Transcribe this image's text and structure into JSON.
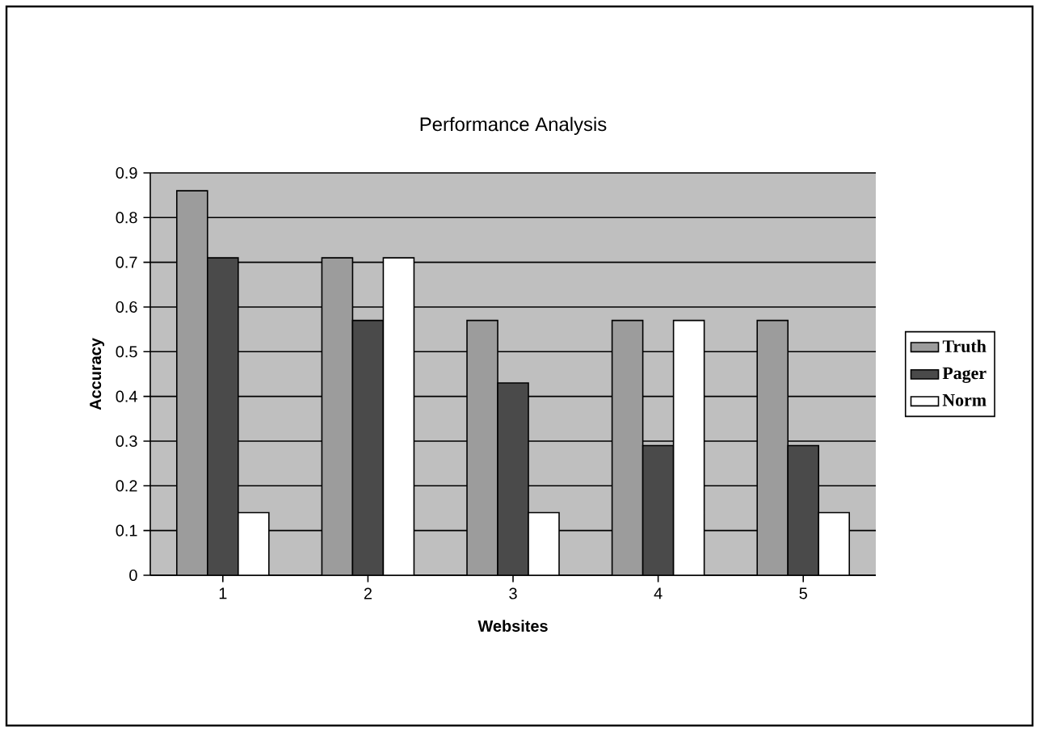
{
  "chart_data": {
    "type": "bar",
    "title": "Performance Analysis",
    "xlabel": "Websites",
    "ylabel": "Accuracy",
    "categories": [
      "1",
      "2",
      "3",
      "4",
      "5"
    ],
    "series": [
      {
        "name": "Truth",
        "color": "#9c9c9c",
        "values": [
          0.86,
          0.71,
          0.57,
          0.57,
          0.57
        ]
      },
      {
        "name": "Pager",
        "color": "#4a4a4a",
        "values": [
          0.71,
          0.57,
          0.43,
          0.29,
          0.29
        ]
      },
      {
        "name": "Norm",
        "color": "#ffffff",
        "values": [
          0.14,
          0.71,
          0.14,
          0.57,
          0.14
        ]
      }
    ],
    "ylim": [
      0,
      0.9
    ],
    "yticks": [
      0,
      0.1,
      0.2,
      0.3,
      0.4,
      0.5,
      0.6,
      0.7,
      0.8,
      0.9
    ],
    "grid": "y",
    "legend": "right"
  }
}
